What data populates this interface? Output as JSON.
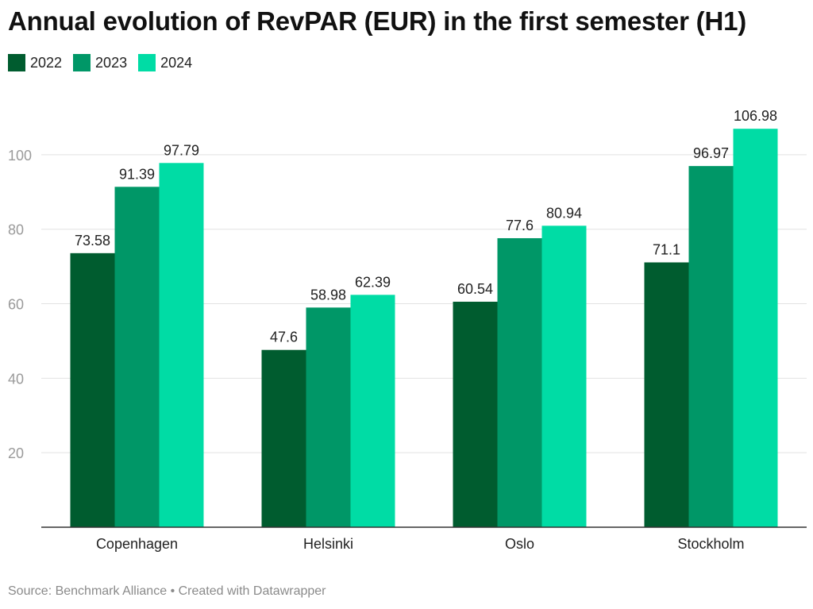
{
  "title": "Annual evolution of RevPAR (EUR) in the first semester (H1)",
  "footer": {
    "source": "Source: Benchmark Alliance",
    "separator": "•",
    "credit": "Created with Datawrapper"
  },
  "chart_data": {
    "type": "bar",
    "title": "Annual evolution of RevPAR (EUR) in the first semester (H1)",
    "categories": [
      "Copenhagen",
      "Helsinki",
      "Oslo",
      "Stockholm"
    ],
    "series": [
      {
        "name": "2022",
        "color": "#005c2f",
        "values": [
          73.58,
          47.6,
          60.54,
          71.1
        ]
      },
      {
        "name": "2023",
        "color": "#009767",
        "values": [
          91.39,
          58.98,
          77.6,
          96.97
        ]
      },
      {
        "name": "2024",
        "color": "#00dca5",
        "values": [
          97.79,
          62.39,
          80.94,
          106.98
        ]
      }
    ],
    "yticks": [
      20,
      40,
      60,
      80,
      100
    ],
    "ylim": [
      0,
      110
    ],
    "grid": true,
    "legend_position": "top-left"
  }
}
